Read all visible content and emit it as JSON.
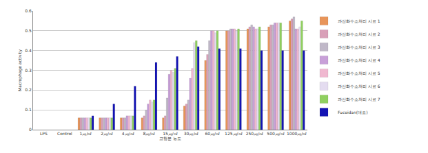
{
  "chart_data": {
    "type": "bar",
    "x_label": "고형분 농도",
    "y_label": "Macrophage activity",
    "categories": [
      "LPS",
      "Control",
      "1㎍/㎖",
      "2㎍/㎖",
      "4㎍/㎖",
      "8㎍/㎖",
      "15㎍/㎖",
      "30㎍/㎖",
      "60㎍/㎖",
      "125㎍/㎖",
      "250㎍/㎖",
      "500㎍/㎖",
      "1000㎍/㎖"
    ],
    "series": [
      {
        "name": "과산화수소처리 시료 1",
        "color": "#e8955a",
        "values": [
          null,
          null,
          0.06,
          0.06,
          0.06,
          0.06,
          0.06,
          0.12,
          0.35,
          0.5,
          0.51,
          0.52,
          0.55
        ]
      },
      {
        "name": "과산화수소처리 시료 2",
        "color": "#d9a0b8",
        "values": [
          null,
          null,
          0.06,
          0.06,
          0.06,
          0.07,
          0.07,
          0.13,
          0.38,
          0.5,
          0.52,
          0.53,
          0.56
        ]
      },
      {
        "name": "과산화수소처리 시료 3",
        "color": "#c0b8c8",
        "values": [
          null,
          null,
          0.06,
          0.06,
          0.06,
          0.1,
          0.16,
          0.15,
          0.45,
          0.51,
          0.53,
          0.53,
          0.57
        ]
      },
      {
        "name": "과산화수소처리 시료 4",
        "color": "#c8a0d8",
        "values": [
          null,
          null,
          0.06,
          0.06,
          0.07,
          0.13,
          0.28,
          0.26,
          0.5,
          0.51,
          0.52,
          0.54,
          0.51
        ]
      },
      {
        "name": "과산화수소처리 시료 5",
        "color": "#f0b8d0",
        "values": [
          null,
          null,
          0.06,
          0.06,
          0.07,
          0.15,
          0.3,
          0.31,
          0.5,
          0.51,
          0.51,
          0.54,
          0.51
        ]
      },
      {
        "name": "과산화수소처리 시료 6",
        "color": "#e4dcf0",
        "values": [
          null,
          null,
          0.06,
          0.06,
          0.07,
          0.14,
          0.29,
          0.44,
          0.49,
          0.5,
          0.51,
          0.54,
          0.52
        ]
      },
      {
        "name": "과산화수소처리 시료 7",
        "color": "#90d060",
        "values": [
          null,
          null,
          0.06,
          0.06,
          0.07,
          0.15,
          0.31,
          0.45,
          0.5,
          0.51,
          0.52,
          0.54,
          0.55
        ]
      },
      {
        "name": "Fucoidan(대조)",
        "color": "#1414b4",
        "values": [
          null,
          null,
          0.07,
          0.13,
          0.22,
          0.34,
          0.37,
          0.42,
          0.41,
          0.41,
          0.4,
          0.4,
          0.4
        ]
      }
    ],
    "ylim": [
      0,
      0.6
    ],
    "yticks": [
      0,
      0.1,
      0.2,
      0.3,
      0.4,
      0.5,
      0.6
    ],
    "grid": true,
    "legend": "right"
  }
}
